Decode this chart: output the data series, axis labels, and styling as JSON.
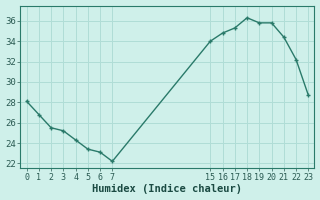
{
  "x": [
    0,
    1,
    2,
    3,
    4,
    5,
    6,
    7,
    15,
    16,
    17,
    18,
    19,
    20,
    21,
    22,
    23
  ],
  "y": [
    28.1,
    26.8,
    25.5,
    25.2,
    24.3,
    23.4,
    23.1,
    22.2,
    34.0,
    34.8,
    35.3,
    36.3,
    35.8,
    35.8,
    34.4,
    32.2,
    28.7
  ],
  "xlabel": "Humidex (Indice chaleur)",
  "xlim": [
    -0.5,
    23.5
  ],
  "ylim": [
    21.5,
    37.5
  ],
  "yticks": [
    22,
    24,
    26,
    28,
    30,
    32,
    34,
    36
  ],
  "xticks": [
    0,
    1,
    2,
    3,
    4,
    5,
    6,
    7,
    15,
    16,
    17,
    18,
    19,
    20,
    21,
    22,
    23
  ],
  "bg_color": "#cff0ea",
  "grid_color": "#b0ddd6",
  "line_color": "#2a7a6a",
  "marker_color": "#2a7a6a"
}
